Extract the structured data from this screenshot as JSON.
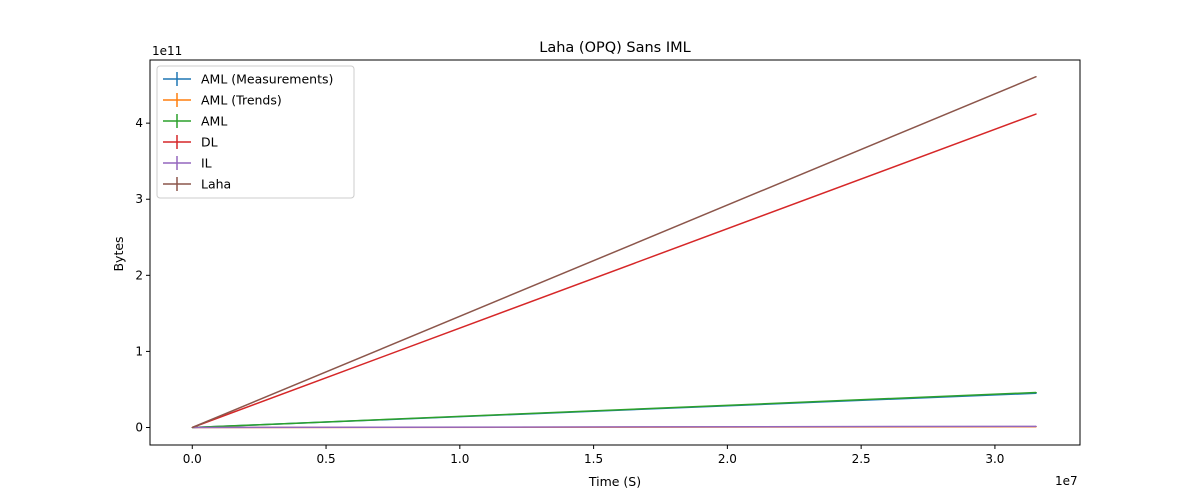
{
  "chart_data": {
    "type": "line",
    "title": "Laha (OPQ) Sans IML",
    "xlabel": "Time (S)",
    "ylabel": "Bytes",
    "x_offset_label": "1e7",
    "y_offset_label": "1e11",
    "x_scale": 10000000,
    "y_scale": 100000000000,
    "xlim": [
      -1580000,
      33180000
    ],
    "ylim": [
      -23000000000,
      483000000000
    ],
    "xticks": [
      0,
      5000000,
      10000000,
      15000000,
      20000000,
      25000000,
      30000000
    ],
    "xtick_labels": [
      "0.0",
      "0.5",
      "1.0",
      "1.5",
      "2.0",
      "2.5",
      "3.0"
    ],
    "yticks": [
      0,
      100000000000,
      200000000000,
      300000000000,
      400000000000
    ],
    "ytick_labels": [
      "0",
      "1",
      "2",
      "3",
      "4"
    ],
    "grid": false,
    "legend_position": "upper-left",
    "error_bars": true,
    "series": [
      {
        "name": "AML (Measurements)",
        "color": "#1f77b4",
        "x": [
          0,
          31536000
        ],
        "y": [
          0,
          45000000000
        ]
      },
      {
        "name": "AML (Trends)",
        "color": "#ff7f0e",
        "x": [
          0,
          31536000
        ],
        "y": [
          0,
          1000000000
        ]
      },
      {
        "name": "AML",
        "color": "#2ca02c",
        "x": [
          0,
          31536000
        ],
        "y": [
          0,
          46000000000
        ]
      },
      {
        "name": "DL",
        "color": "#d62728",
        "x": [
          0,
          31536000
        ],
        "y": [
          0,
          412000000000
        ]
      },
      {
        "name": "IL",
        "color": "#9467bd",
        "x": [
          0,
          31536000
        ],
        "y": [
          0,
          1500000000
        ]
      },
      {
        "name": "Laha",
        "color": "#8c564b",
        "x": [
          0,
          31536000
        ],
        "y": [
          0,
          461000000000
        ]
      }
    ]
  }
}
